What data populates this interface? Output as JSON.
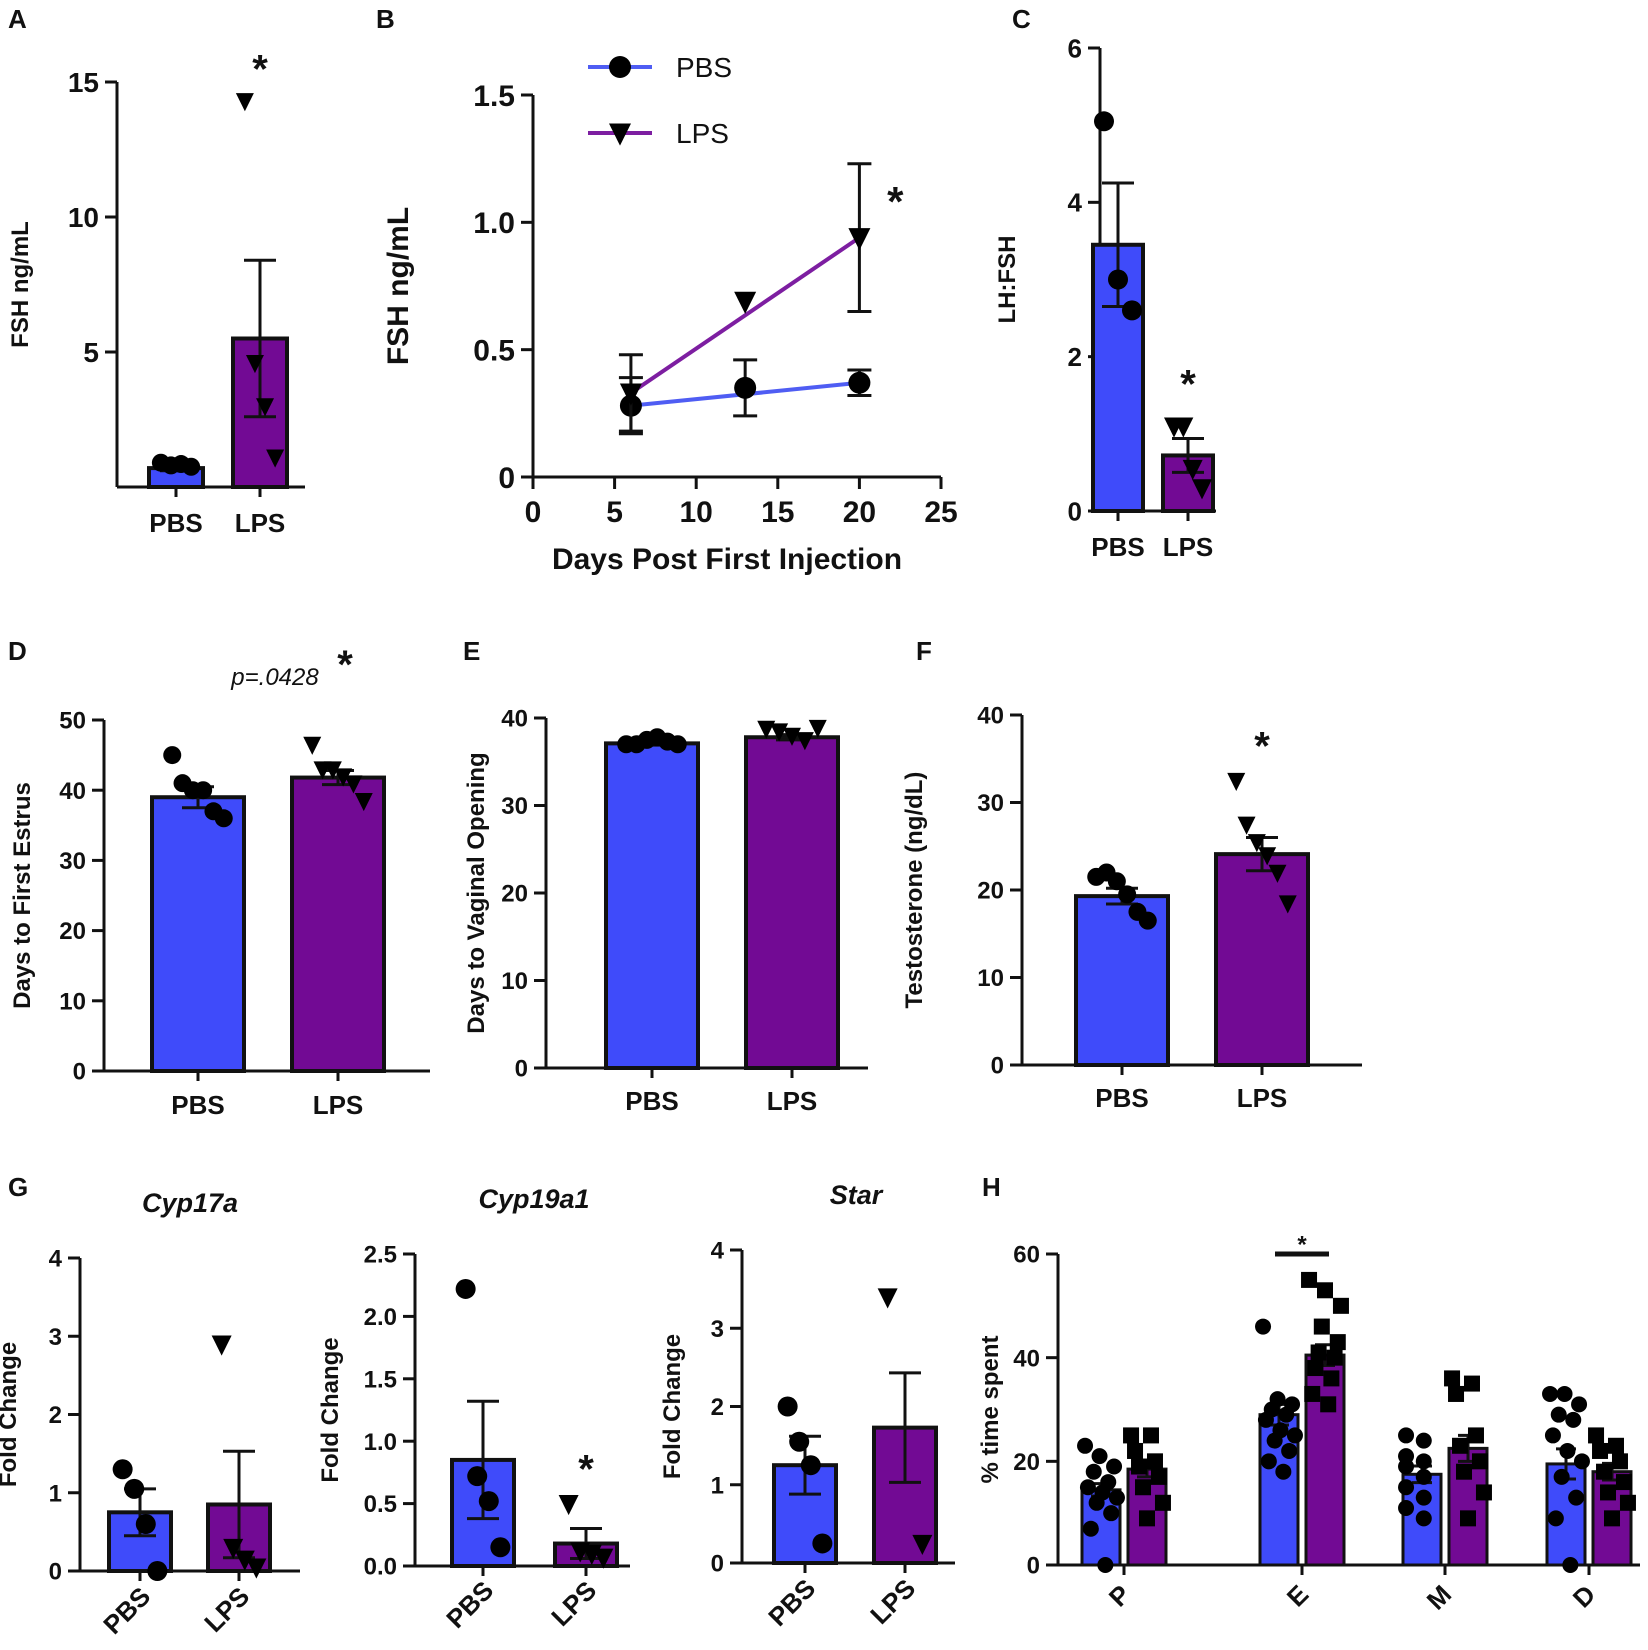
{
  "colors": {
    "pbs": "#3f4bfa",
    "lps": "#720a94",
    "axis": "#111111",
    "point": "#000000",
    "pbs_line": "#4f5df3",
    "lps_line": "#7d1ea1"
  },
  "panels": [
    {
      "id": "A",
      "letter": "A",
      "type": "bar",
      "ylabel": "FSH ng/mL",
      "ylim": [
        0,
        15
      ],
      "yticks": [
        {
          "v": 5,
          "label": "5"
        },
        {
          "v": 10,
          "label": "10"
        },
        {
          "v": 15,
          "label": "15"
        }
      ],
      "categories": [
        "PBS",
        "LPS"
      ],
      "bars": [
        {
          "group": "pbs",
          "mean": 0.7,
          "sem": 0.1,
          "points": [
            0.9,
            0.8,
            0.85,
            0.75
          ],
          "marker": "circle"
        },
        {
          "group": "lps",
          "mean": 5.5,
          "sem": 2.9,
          "points": [
            14.3,
            4.6,
            3.0,
            1.1
          ],
          "marker": "triangle"
        }
      ],
      "annotations": [
        {
          "text": "*",
          "x": 1,
          "y": 15.5
        }
      ]
    },
    {
      "id": "B",
      "letter": "B",
      "type": "line",
      "xlabel": "Days Post First Injection",
      "ylabel": "FSH ng/mL",
      "xlim": [
        0,
        25
      ],
      "ylim": [
        0,
        1.5
      ],
      "xticks": [
        {
          "v": 0,
          "label": "0"
        },
        {
          "v": 5,
          "label": "5"
        },
        {
          "v": 10,
          "label": "10"
        },
        {
          "v": 15,
          "label": "15"
        },
        {
          "v": 20,
          "label": "20"
        },
        {
          "v": 25,
          "label": "25"
        }
      ],
      "yticks": [
        {
          "v": 0,
          "label": "0"
        },
        {
          "v": 0.5,
          "label": "0.5"
        },
        {
          "v": 1.0,
          "label": "1.0"
        },
        {
          "v": 1.5,
          "label": "1.5"
        }
      ],
      "series": [
        {
          "name": "PBS",
          "group": "pbs",
          "marker": "circle",
          "x": [
            6,
            13,
            20
          ],
          "y": [
            0.28,
            0.35,
            0.37
          ],
          "err": [
            0.11,
            0.11,
            0.05
          ]
        },
        {
          "name": "LPS",
          "group": "lps",
          "marker": "triangle",
          "x": [
            6,
            13,
            20
          ],
          "y": [
            0.33,
            0.69,
            0.94
          ],
          "err": [
            0.15,
            0.0,
            0.29
          ]
        }
      ],
      "annotations": [
        {
          "text": "*",
          "x": 22.2,
          "y": 1.08
        }
      ]
    },
    {
      "id": "C",
      "letter": "C",
      "type": "bar",
      "ylabel": "LH:FSH",
      "ylim": [
        0,
        6
      ],
      "yticks": [
        {
          "v": 0,
          "label": "0"
        },
        {
          "v": 2,
          "label": "2"
        },
        {
          "v": 4,
          "label": "4"
        },
        {
          "v": 6,
          "label": "6"
        }
      ],
      "categories": [
        "PBS",
        "LPS"
      ],
      "bars": [
        {
          "group": "pbs",
          "mean": 3.45,
          "sem": 0.8,
          "points": [
            5.05,
            3.0,
            2.6
          ],
          "marker": "circle"
        },
        {
          "group": "lps",
          "mean": 0.72,
          "sem": 0.22,
          "points": [
            1.1,
            1.1,
            0.55,
            0.3
          ],
          "marker": "triangle"
        }
      ],
      "annotations": [
        {
          "text": "*",
          "x": 1,
          "y": 1.65
        }
      ]
    },
    {
      "id": "D",
      "letter": "D",
      "type": "bar",
      "ylabel": "Days to First Estrus",
      "ylim": [
        0,
        50
      ],
      "yticks": [
        {
          "v": 0,
          "label": "0"
        },
        {
          "v": 10,
          "label": "10"
        },
        {
          "v": 20,
          "label": "20"
        },
        {
          "v": 30,
          "label": "30"
        },
        {
          "v": 40,
          "label": "40"
        },
        {
          "v": 50,
          "label": "50"
        }
      ],
      "categories": [
        "PBS",
        "LPS"
      ],
      "bars": [
        {
          "group": "pbs",
          "mean": 39,
          "sem": 1.5,
          "points": [
            45,
            41,
            40,
            40,
            37,
            36
          ],
          "marker": "circle"
        },
        {
          "group": "lps",
          "mean": 41.8,
          "sem": 1.0,
          "points": [
            46.5,
            43,
            43,
            42,
            41,
            38.5
          ],
          "marker": "triangle"
        }
      ],
      "annotations": [
        {
          "text": "p=.0428",
          "x": 0.55,
          "y": 55,
          "kind": "pval"
        },
        {
          "text": "*",
          "x": 1.05,
          "y": 58
        }
      ]
    },
    {
      "id": "E",
      "letter": "E",
      "type": "bar",
      "ylabel": "Days to Vaginal Opening",
      "ylim": [
        0,
        40
      ],
      "yticks": [
        {
          "v": 0,
          "label": "0"
        },
        {
          "v": 10,
          "label": "10"
        },
        {
          "v": 20,
          "label": "20"
        },
        {
          "v": 30,
          "label": "30"
        },
        {
          "v": 40,
          "label": "40"
        }
      ],
      "categories": [
        "PBS",
        "LPS"
      ],
      "bars": [
        {
          "group": "pbs",
          "mean": 37.1,
          "sem": 0.2,
          "points": [
            37,
            37,
            37.5,
            37.8,
            37.3,
            37
          ],
          "marker": "circle"
        },
        {
          "group": "lps",
          "mean": 37.8,
          "sem": 0.3,
          "points": [
            38.8,
            38.5,
            38,
            37.5,
            38.9
          ],
          "marker": "triangle"
        }
      ],
      "annotations": []
    },
    {
      "id": "F",
      "letter": "F",
      "type": "bar",
      "ylabel": "Testosterone (ng/dL)",
      "ylim": [
        0,
        40
      ],
      "yticks": [
        {
          "v": 0,
          "label": "0"
        },
        {
          "v": 10,
          "label": "10"
        },
        {
          "v": 20,
          "label": "20"
        },
        {
          "v": 30,
          "label": "30"
        },
        {
          "v": 40,
          "label": "40"
        }
      ],
      "categories": [
        "PBS",
        "LPS"
      ],
      "bars": [
        {
          "group": "pbs",
          "mean": 19.3,
          "sem": 0.9,
          "points": [
            21.5,
            22,
            21,
            19.5,
            17.5,
            16.5
          ],
          "marker": "circle"
        },
        {
          "group": "lps",
          "mean": 24.1,
          "sem": 1.9,
          "points": [
            32.5,
            27.5,
            25.5,
            24,
            22,
            18.5
          ],
          "marker": "triangle"
        }
      ],
      "annotations": [
        {
          "text": "*",
          "x": 1,
          "y": 36.5
        }
      ]
    },
    {
      "id": "G1",
      "letter": "G",
      "type": "bar",
      "gene": "Cyp17a",
      "rotate_cats": true,
      "ylabel": "Fold Change",
      "ylim": [
        0,
        4
      ],
      "yticks": [
        {
          "v": 0,
          "label": "0"
        },
        {
          "v": 1,
          "label": "1"
        },
        {
          "v": 2,
          "label": "2"
        },
        {
          "v": 3,
          "label": "3"
        },
        {
          "v": 4,
          "label": "4"
        }
      ],
      "categories": [
        "PBS",
        "LPS"
      ],
      "bars": [
        {
          "group": "pbs",
          "mean": 0.75,
          "sem": 0.3,
          "points": [
            1.3,
            1.05,
            0.6,
            0.0
          ],
          "marker": "circle"
        },
        {
          "group": "lps",
          "mean": 0.85,
          "sem": 0.68,
          "points": [
            2.9,
            0.3,
            0.15,
            0.05
          ],
          "marker": "triangle"
        }
      ],
      "annotations": []
    },
    {
      "id": "G2",
      "letter": "",
      "type": "bar",
      "gene": "Cyp19a1",
      "rotate_cats": true,
      "ylabel": "Fold Change",
      "ylim": [
        0,
        2.5
      ],
      "yticks": [
        {
          "v": 0,
          "label": "0.0"
        },
        {
          "v": 0.5,
          "label": "0.5"
        },
        {
          "v": 1.0,
          "label": "1.0"
        },
        {
          "v": 1.5,
          "label": "1.5"
        },
        {
          "v": 2.0,
          "label": "2.0"
        },
        {
          "v": 2.5,
          "label": "2.5"
        }
      ],
      "categories": [
        "PBS",
        "LPS"
      ],
      "bars": [
        {
          "group": "pbs",
          "mean": 0.85,
          "sem": 0.47,
          "points": [
            2.22,
            0.72,
            0.52,
            0.15
          ],
          "marker": "circle"
        },
        {
          "group": "lps",
          "mean": 0.18,
          "sem": 0.12,
          "points": [
            0.5,
            0.12,
            0.1,
            0.07
          ],
          "marker": "triangle"
        }
      ],
      "annotations": [
        {
          "text": "*",
          "x": 1,
          "y": 0.78
        }
      ]
    },
    {
      "id": "G3",
      "letter": "",
      "type": "bar",
      "gene": "Star",
      "rotate_cats": true,
      "ylabel": "Fold Change",
      "ylim": [
        0,
        4
      ],
      "yticks": [
        {
          "v": 0,
          "label": "0"
        },
        {
          "v": 1,
          "label": "1"
        },
        {
          "v": 2,
          "label": "2"
        },
        {
          "v": 3,
          "label": "3"
        },
        {
          "v": 4,
          "label": "4"
        }
      ],
      "categories": [
        "PBS",
        "LPS"
      ],
      "bars": [
        {
          "group": "pbs",
          "mean": 1.25,
          "sem": 0.37,
          "points": [
            2.0,
            1.55,
            1.25,
            0.25
          ],
          "marker": "circle"
        },
        {
          "group": "lps",
          "mean": 1.73,
          "sem": 0.7,
          "points": [
            3.4,
            0.25
          ],
          "marker": "triangle"
        }
      ],
      "annotations": []
    },
    {
      "id": "H",
      "letter": "H",
      "type": "grouped",
      "ylabel": "% time spent",
      "ylim": [
        0,
        60
      ],
      "yticks": [
        {
          "v": 0,
          "label": "0"
        },
        {
          "v": 20,
          "label": "20"
        },
        {
          "v": 40,
          "label": "40"
        },
        {
          "v": 60,
          "label": "60"
        }
      ],
      "categories": [
        "P",
        "E",
        "M",
        "D"
      ],
      "series": [
        {
          "group": "pbs",
          "marker": "circle",
          "means": [
            14.5,
            29,
            17.5,
            19.5
          ],
          "sems": [
            1.2,
            2.0,
            1.6,
            2.9
          ],
          "points": [
            [
              23,
              21,
              19,
              18,
              16,
              15,
              14,
              13,
              12,
              10,
              7,
              0
            ],
            [
              46,
              32,
              31,
              30,
              29,
              28,
              26,
              25,
              24,
              22,
              20,
              18
            ],
            [
              25,
              24,
              21,
              20,
              19,
              17,
              15,
              13,
              11,
              9
            ],
            [
              33,
              33,
              31,
              29,
              28,
              25,
              22,
              20,
              17,
              13,
              9,
              0
            ]
          ]
        },
        {
          "group": "lps",
          "marker": "square",
          "means": [
            18.5,
            40.5,
            22.5,
            18
          ],
          "sems": [
            1.5,
            2.0,
            2.5,
            1.6
          ],
          "points": [
            [
              25,
              25,
              22,
              20,
              19,
              17,
              15,
              12,
              9
            ],
            [
              55,
              53,
              50,
              46,
              43,
              41,
              40,
              38,
              36,
              33,
              31
            ],
            [
              36,
              35,
              33,
              25,
              23,
              20,
              18,
              14,
              9
            ],
            [
              25,
              23,
              22,
              20,
              18,
              16,
              14,
              12,
              9
            ]
          ]
        }
      ],
      "annotations": [
        {
          "text": "*",
          "x": 1,
          "y": 63
        }
      ],
      "sig_bar": {
        "category": 1,
        "y": 60
      }
    }
  ]
}
